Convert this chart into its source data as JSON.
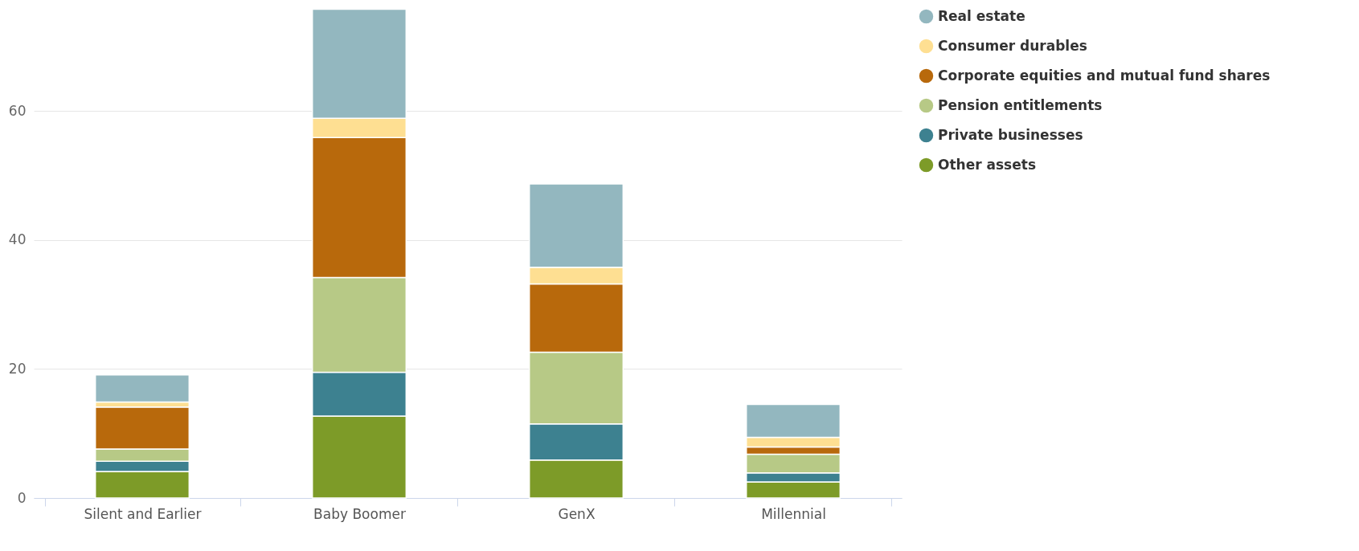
{
  "chart_data": {
    "type": "bar",
    "stacked": true,
    "categories": [
      "Silent and Earlier",
      "Baby Boomer",
      "GenX",
      "Millennial"
    ],
    "series": [
      {
        "name": "Other assets",
        "color": "#7d9b28",
        "values": [
          4.1,
          12.7,
          5.9,
          2.5
        ]
      },
      {
        "name": "Private businesses",
        "color": "#3d8190",
        "values": [
          1.6,
          6.8,
          5.6,
          1.4
        ]
      },
      {
        "name": "Pension entitlements",
        "color": "#b7c986",
        "values": [
          1.9,
          14.7,
          11.1,
          2.9
        ]
      },
      {
        "name": "Corporate equities and mutual fund shares",
        "color": "#b8690c",
        "values": [
          6.5,
          21.7,
          10.6,
          1.1
        ]
      },
      {
        "name": "Consumer durables",
        "color": "#fedf92",
        "values": [
          0.8,
          3.0,
          2.6,
          1.5
        ]
      },
      {
        "name": "Real estate",
        "color": "#93b7bf",
        "values": [
          4.2,
          16.9,
          12.9,
          5.1
        ]
      }
    ],
    "ylim": [
      0,
      76
    ],
    "yticks": [
      0,
      20,
      40,
      60
    ],
    "grid": "y",
    "legend": "right",
    "marker": "circle"
  }
}
